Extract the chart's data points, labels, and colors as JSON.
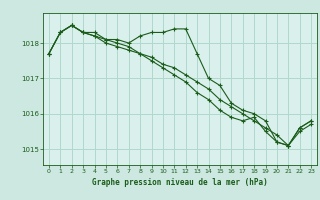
{
  "title": "Graphe pression niveau de la mer (hPa)",
  "background_color": "#cce8e0",
  "plot_bg_color": "#daf0ec",
  "grid_color": "#b0d8cc",
  "line_color": "#1a5c1a",
  "marker_color": "#1a5c1a",
  "xlim": [
    -0.5,
    23.5
  ],
  "ylim": [
    1014.55,
    1018.85
  ],
  "yticks": [
    1015,
    1016,
    1017,
    1018
  ],
  "xticks": [
    0,
    1,
    2,
    3,
    4,
    5,
    6,
    7,
    8,
    9,
    10,
    11,
    12,
    13,
    14,
    15,
    16,
    17,
    18,
    19,
    20,
    21,
    22,
    23
  ],
  "series1": {
    "x": [
      0,
      1,
      2,
      3,
      4,
      5,
      6,
      7,
      8,
      9,
      10,
      11,
      12,
      13,
      14,
      15,
      16,
      17,
      18,
      19,
      20,
      21,
      22,
      23
    ],
    "y": [
      1017.7,
      1018.3,
      1018.5,
      1018.3,
      1018.3,
      1018.1,
      1018.1,
      1018.0,
      1018.2,
      1018.3,
      1018.3,
      1018.4,
      1018.4,
      1017.7,
      1017.0,
      1016.8,
      1016.3,
      1016.1,
      1016.0,
      1015.8,
      1015.2,
      1015.1,
      1015.6,
      1015.8
    ]
  },
  "series2": {
    "x": [
      0,
      1,
      2,
      3,
      4,
      5,
      6,
      7,
      8,
      9,
      10,
      11,
      12,
      13,
      14,
      15,
      16,
      17,
      18,
      19,
      20,
      21,
      22,
      23
    ],
    "y": [
      1017.7,
      1018.3,
      1018.5,
      1018.3,
      1018.2,
      1018.0,
      1017.9,
      1017.8,
      1017.7,
      1017.6,
      1017.4,
      1017.3,
      1017.1,
      1016.9,
      1016.7,
      1016.4,
      1016.2,
      1016.0,
      1015.8,
      1015.6,
      1015.4,
      1015.1,
      1015.6,
      1015.8
    ]
  },
  "series3": {
    "x": [
      0,
      1,
      2,
      3,
      4,
      5,
      6,
      7,
      8,
      9,
      10,
      11,
      12,
      13,
      14,
      15,
      16,
      17,
      18,
      19,
      20,
      21,
      22,
      23
    ],
    "y": [
      1017.7,
      1018.3,
      1018.5,
      1018.3,
      1018.2,
      1018.1,
      1018.0,
      1017.9,
      1017.7,
      1017.5,
      1017.3,
      1017.1,
      1016.9,
      1016.6,
      1016.4,
      1016.1,
      1015.9,
      1015.8,
      1015.9,
      1015.5,
      1015.2,
      1015.1,
      1015.5,
      1015.7
    ]
  }
}
